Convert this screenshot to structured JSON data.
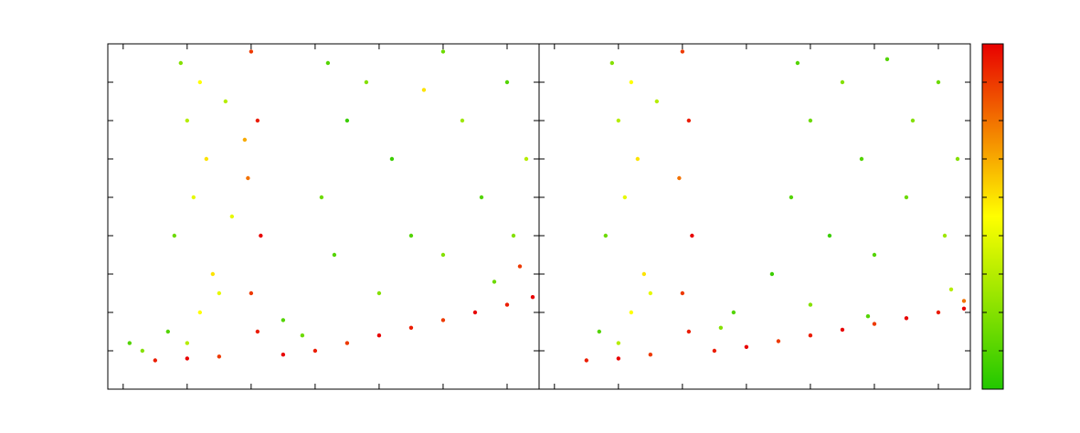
{
  "chart_data": [
    {
      "type": "scatter",
      "xlim": [
        -0.24,
        6.5
      ],
      "ylim": [
        -1,
        8
      ],
      "xticks": [
        0,
        1,
        2,
        3,
        4,
        5,
        6
      ],
      "yticks": [
        0,
        1,
        2,
        3,
        4,
        5,
        6,
        7
      ],
      "x": [
        0.9,
        1.2,
        1.0,
        1.3,
        1.1,
        0.8,
        1.4,
        1.2,
        0.7,
        1.0,
        1.6,
        1.7,
        1.5,
        2.0,
        2.1,
        1.95,
        2.15,
        2.0,
        2.1,
        1.9,
        0.5,
        1.0,
        1.5,
        2.5,
        3.0,
        3.5,
        4.0,
        4.5,
        5.0,
        5.5,
        6.0,
        6.4,
        0.3,
        0.1,
        3.2,
        3.5,
        3.1,
        3.3,
        3.8,
        4.2,
        4.5,
        4.0,
        5.0,
        5.3,
        5.6,
        5.0,
        6.0,
        6.3,
        6.1,
        5.8,
        4.7,
        6.2,
        2.5,
        2.8
      ],
      "values": [
        7.5,
        7,
        6,
        5,
        4,
        3,
        2,
        1,
        0.5,
        0.2,
        6.5,
        3.5,
        1.5,
        7.8,
        6,
        4.5,
        3,
        1.5,
        0.5,
        5.5,
        -0.25,
        -0.2,
        -0.15,
        -0.1,
        0,
        0.2,
        0.4,
        0.6,
        0.8,
        1.0,
        1.2,
        1.4,
        0,
        0.2,
        7.5,
        6,
        4,
        2.5,
        7,
        5,
        3,
        1.5,
        7.8,
        6,
        4,
        2.5,
        7,
        5,
        3,
        1.8,
        6.8,
        2.2,
        0.8,
        0.4
      ],
      "color_values": [
        2,
        4.5,
        3,
        5,
        4,
        1.5,
        5,
        4.5,
        1,
        3,
        3,
        4,
        4,
        8,
        8.5,
        7,
        9,
        8,
        8.5,
        6,
        8.5,
        9,
        8,
        9,
        8.5,
        8,
        9,
        8.5,
        8,
        9,
        8.5,
        9,
        2,
        1,
        1,
        0.5,
        1.5,
        1,
        2,
        0.5,
        1,
        2,
        1.5,
        2.5,
        1,
        2,
        1,
        3,
        2,
        1.5,
        5,
        8,
        1,
        1.5
      ]
    },
    {
      "type": "scatter",
      "xlim": [
        -0.24,
        6.5
      ],
      "ylim": [
        -1,
        8
      ],
      "xticks": [
        0,
        1,
        2,
        3,
        4,
        5,
        6
      ],
      "yticks": [
        0,
        1,
        2,
        3,
        4,
        5,
        6,
        7
      ],
      "x": [
        0.9,
        1.2,
        1.0,
        1.3,
        1.1,
        0.8,
        1.4,
        1.2,
        0.7,
        1.0,
        1.6,
        1.5,
        2.0,
        2.1,
        1.95,
        2.15,
        2.0,
        2.1,
        0.5,
        1.0,
        1.5,
        2.5,
        3.0,
        3.5,
        4.0,
        4.5,
        5.0,
        5.5,
        6.0,
        6.4,
        3.8,
        4.0,
        3.7,
        3.4,
        2.8,
        2.6,
        4.5,
        4.8,
        4.3,
        4.0,
        5.2,
        5.6,
        5.5,
        5.0,
        6.0,
        6.3,
        6.1,
        6.2,
        4.9,
        6.4
      ],
      "values": [
        7.5,
        7,
        6,
        5,
        4,
        3,
        2,
        1,
        0.5,
        0.2,
        6.5,
        1.5,
        7.8,
        6,
        4.5,
        3,
        1.5,
        0.5,
        -0.25,
        -0.2,
        -0.1,
        0,
        0.1,
        0.25,
        0.4,
        0.55,
        0.7,
        0.85,
        1.0,
        1.1,
        7.5,
        6,
        4,
        2,
        1,
        0.6,
        7,
        5,
        3,
        1.2,
        7.6,
        6,
        4,
        2.5,
        7,
        5,
        3,
        1.6,
        0.9,
        1.3
      ],
      "color_values": [
        2,
        4.5,
        3,
        5,
        4,
        1.5,
        5,
        4.5,
        1,
        3,
        3,
        4,
        8,
        8.5,
        7,
        9,
        8,
        8.5,
        8.5,
        9,
        8,
        8.5,
        9,
        8,
        8.5,
        9,
        8,
        9,
        8.5,
        9,
        1,
        1.5,
        1,
        0.5,
        1,
        2,
        2,
        1,
        0.5,
        2,
        1,
        2,
        1.5,
        1,
        1.5,
        2,
        2.5,
        3,
        1,
        7
      ]
    },
    {
      "type": "colorbar",
      "clim": [
        0,
        9
      ],
      "cticks": [
        0,
        1,
        2,
        3,
        4,
        5,
        6,
        7,
        8,
        9
      ],
      "colormap": [
        "#22c800",
        "#ffff00",
        "#e80000"
      ]
    }
  ]
}
